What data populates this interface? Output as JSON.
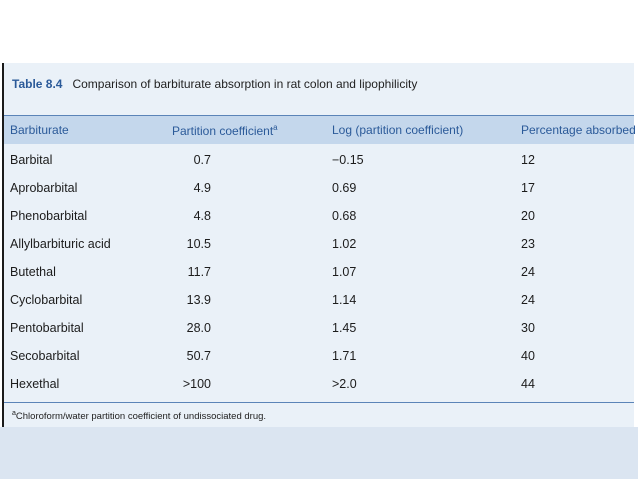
{
  "table": {
    "label": "Table 8.4",
    "caption": "Comparison of barbiturate absorption in rat colon and lipophilicity",
    "headers": [
      "Barbiturate",
      "Partition coefficient",
      "Log (partition coefficient)",
      "Percentage absorbed"
    ],
    "header_superscript": "a",
    "rows": [
      [
        "Barbital",
        "0.7",
        "−0.15",
        "12"
      ],
      [
        "Aprobarbital",
        "4.9",
        "0.69",
        "17"
      ],
      [
        "Phenobarbital",
        "4.8",
        "0.68",
        "20"
      ],
      [
        "Allylbarbituric acid",
        "10.5",
        "1.02",
        "23"
      ],
      [
        "Butethal",
        "11.7",
        "1.07",
        "24"
      ],
      [
        "Cyclobarbital",
        "13.9",
        "1.14",
        "24"
      ],
      [
        "Pentobarbital",
        "28.0",
        "1.45",
        "30"
      ],
      [
        "Secobarbital",
        "50.7",
        "1.71",
        "40"
      ],
      [
        "Hexethal",
        ">100",
        ">2.0",
        "44"
      ]
    ],
    "footnote_marker": "a",
    "footnote": "Chloroform/water partition coefficient of undissociated drug."
  },
  "colors": {
    "header_bg": "#c4d7ec",
    "panel_bg": "#eaf1f8",
    "accent_text": "#2b5a99",
    "bottom_band": "#dbe5f1"
  }
}
